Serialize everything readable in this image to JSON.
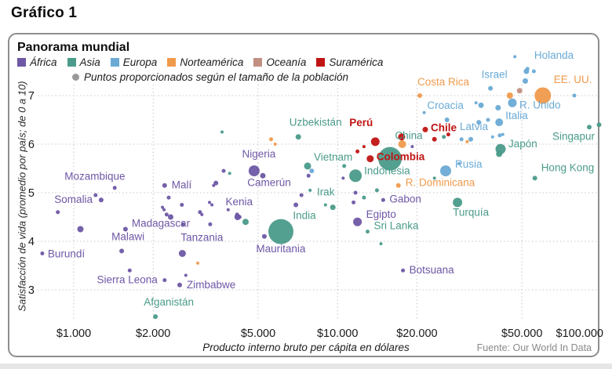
{
  "page_title": "Gráfico 1",
  "panel": {
    "title": "Panorama mundial",
    "source": "Fuente: Our World In Data"
  },
  "legend": {
    "size_note": "Puntos proporcionados según el tamaño de la población",
    "size_dot_color": "#999999",
    "continents": [
      {
        "key": "africa",
        "name": "África",
        "color": "#6e57a5"
      },
      {
        "key": "asia",
        "name": "Asia",
        "color": "#4a9b8a"
      },
      {
        "key": "europa",
        "name": "Europa",
        "color": "#6aaad5"
      },
      {
        "key": "norteamerica",
        "name": "Norteamérica",
        "color": "#f09a4c"
      },
      {
        "key": "oceania",
        "name": "Oceanía",
        "color": "#c28f83"
      },
      {
        "key": "suramerica",
        "name": "Suramérica",
        "color": "#c01414"
      }
    ]
  },
  "chart_data": {
    "type": "scatter",
    "title": "Panorama mundial",
    "xlabel": "Producto interno bruto per cápita en dólares",
    "ylabel": "Satisfacción de vida (promedio por país; de 0 a 10)",
    "x_scale": "log",
    "y_scale": "linear",
    "x_range": [
      700,
      110000
    ],
    "y_range": [
      2.3,
      7.9
    ],
    "grid": "dotted",
    "size_encoding": "población del país",
    "x_ticks": [
      {
        "value": 1000,
        "label": "$1.000",
        "gridline": true
      },
      {
        "value": 2000,
        "label": "$2.000",
        "gridline": true
      },
      {
        "value": 5000,
        "label": "$5.000",
        "gridline": true
      },
      {
        "value": 10000,
        "label": "$10.000",
        "gridline": true
      },
      {
        "value": 20000,
        "label": "$20.000",
        "gridline": true
      },
      {
        "value": 50000,
        "label": "$50.000",
        "gridline": true
      },
      {
        "value": 100000,
        "label": "$100.000",
        "gridline": false
      }
    ],
    "y_ticks": [
      3,
      4,
      5,
      6,
      7
    ],
    "points": [
      {
        "name": "Somalia",
        "continent": "africa",
        "gdp": 870,
        "ls": 4.6,
        "r": 2.5,
        "label_offset": [
          20,
          -12
        ],
        "anchor": "middle"
      },
      {
        "name": "Mozambique",
        "continent": "africa",
        "gdp": 1270,
        "ls": 4.85,
        "r": 3,
        "label_offset": [
          -8,
          -26
        ],
        "anchor": "middle"
      },
      {
        "name": "Burundí",
        "continent": "africa",
        "gdp": 760,
        "ls": 3.75,
        "r": 2.5,
        "label_offset": [
          7,
          5
        ],
        "anchor": "start"
      },
      {
        "name": "Sierra Leona",
        "continent": "africa",
        "gdp": 2210,
        "ls": 3.2,
        "r": 2.5,
        "label_offset": [
          -9,
          4
        ],
        "anchor": "end"
      },
      {
        "name": "Zimbabwe",
        "continent": "africa",
        "gdp": 2520,
        "ls": 3.1,
        "r": 3,
        "label_offset": [
          9,
          4
        ],
        "anchor": "start"
      },
      {
        "name": "Malawi",
        "continent": "africa",
        "gdp": 1520,
        "ls": 3.8,
        "r": 3,
        "label_offset": [
          8,
          -14
        ],
        "anchor": "middle"
      },
      {
        "name": "Madagascar",
        "continent": "africa",
        "gdp": 1570,
        "ls": 4.25,
        "r": 3,
        "label_offset": [
          8,
          -3
        ],
        "anchor": "start"
      },
      {
        "name": "Tanzania",
        "continent": "africa",
        "gdp": 2580,
        "ls": 3.75,
        "r": 4.5,
        "label_offset": [
          25,
          -16
        ],
        "anchor": "middle"
      },
      {
        "name": "Mauritania",
        "continent": "africa",
        "gdp": 5280,
        "ls": 4.1,
        "r": 3,
        "label_offset": [
          21,
          20
        ],
        "anchor": "middle"
      },
      {
        "name": "Malí",
        "continent": "africa",
        "gdp": 2210,
        "ls": 5.15,
        "r": 3,
        "label_offset": [
          9,
          4
        ],
        "anchor": "start"
      },
      {
        "name": "Kenia",
        "continent": "africa",
        "gdp": 4180,
        "ls": 4.5,
        "r": 4,
        "label_offset": [
          2,
          -15
        ],
        "anchor": "middle"
      },
      {
        "name": "Nigeria",
        "continent": "africa",
        "gdp": 4830,
        "ls": 5.45,
        "r": 7,
        "label_offset": [
          6,
          -17
        ],
        "anchor": "middle"
      },
      {
        "name": "Camerún",
        "continent": "africa",
        "gdp": 5210,
        "ls": 5.35,
        "r": 3.5,
        "label_offset": [
          8,
          13
        ],
        "anchor": "middle"
      },
      {
        "name": "Egipto",
        "continent": "africa",
        "gdp": 11900,
        "ls": 4.4,
        "r": 5.5,
        "label_offset": [
          11,
          -5
        ],
        "anchor": "start"
      },
      {
        "name": "Gabon",
        "continent": "africa",
        "gdp": 14900,
        "ls": 4.85,
        "r": 2.5,
        "label_offset": [
          8,
          3
        ],
        "anchor": "start"
      },
      {
        "name": "Botsuana",
        "continent": "africa",
        "gdp": 17700,
        "ls": 3.4,
        "r": 2.5,
        "label_offset": [
          8,
          4
        ],
        "anchor": "start"
      },
      {
        "name": "Afganistán",
        "continent": "asia",
        "gdp": 2040,
        "ls": 2.45,
        "r": 3,
        "label_offset": [
          17,
          -14
        ],
        "anchor": "middle"
      },
      {
        "name": "Uzbekistán",
        "continent": "asia",
        "gdp": 7100,
        "ls": 6.15,
        "r": 3.5,
        "label_offset": [
          22,
          -14
        ],
        "anchor": "middle"
      },
      {
        "name": "India",
        "continent": "asia",
        "gdp": 6100,
        "ls": 4.2,
        "r": 16,
        "label_offset": [
          30,
          -16
        ],
        "anchor": "middle"
      },
      {
        "name": "Vietnam",
        "continent": "asia",
        "gdp": 7700,
        "ls": 5.55,
        "r": 4.5,
        "label_offset": [
          8,
          -7
        ],
        "anchor": "start"
      },
      {
        "name": "Irak",
        "continent": "asia",
        "gdp": 9600,
        "ls": 4.7,
        "r": 3.5,
        "label_offset": [
          -9,
          -15
        ],
        "anchor": "middle"
      },
      {
        "name": "Indonesia",
        "continent": "asia",
        "gdp": 11700,
        "ls": 5.35,
        "r": 8,
        "label_offset": [
          11,
          -2
        ],
        "anchor": "start"
      },
      {
        "name": "China",
        "continent": "asia",
        "gdp": 15800,
        "ls": 5.7,
        "r": 15,
        "label_offset": [
          24,
          -25
        ],
        "anchor": "middle"
      },
      {
        "name": "Sri Lanka",
        "continent": "asia",
        "gdp": 13000,
        "ls": 4.2,
        "r": 2.5,
        "label_offset": [
          8,
          -3
        ],
        "anchor": "start"
      },
      {
        "name": "Turquía",
        "continent": "asia",
        "gdp": 28500,
        "ls": 4.8,
        "r": 6,
        "label_offset": [
          17,
          17
        ],
        "anchor": "middle"
      },
      {
        "name": "Japón",
        "continent": "asia",
        "gdp": 41500,
        "ls": 5.9,
        "r": 6.5,
        "label_offset": [
          10,
          -2
        ],
        "anchor": "start"
      },
      {
        "name": "Singapur",
        "continent": "asia",
        "gdp": 90000,
        "ls": 6.35,
        "r": 3,
        "label_offset": [
          7,
          16
        ],
        "anchor": "end"
      },
      {
        "name": "Hong Kong",
        "continent": "asia",
        "gdp": 56000,
        "ls": 5.3,
        "r": 3,
        "label_offset": [
          8,
          -9
        ],
        "anchor": "start"
      },
      {
        "name": "Croacia",
        "continent": "europa",
        "gdp": 26000,
        "ls": 6.5,
        "r": 3,
        "label_offset": [
          -2,
          -14
        ],
        "anchor": "middle"
      },
      {
        "name": "Latvia",
        "continent": "europa",
        "gdp": 32000,
        "ls": 6.1,
        "r": 3,
        "label_offset": [
          4,
          -12
        ],
        "anchor": "middle"
      },
      {
        "name": "Rusia",
        "continent": "europa",
        "gdp": 25700,
        "ls": 5.45,
        "r": 7,
        "label_offset": [
          12,
          -4
        ],
        "anchor": "start"
      },
      {
        "name": "Italia",
        "continent": "europa",
        "gdp": 41000,
        "ls": 6.45,
        "r": 5,
        "label_offset": [
          8,
          -4
        ],
        "anchor": "start"
      },
      {
        "name": "R. Unido",
        "continent": "europa",
        "gdp": 46000,
        "ls": 6.85,
        "r": 5.5,
        "label_offset": [
          9,
          7
        ],
        "anchor": "start"
      },
      {
        "name": "Israel",
        "continent": "europa",
        "gdp": 38000,
        "ls": 7.15,
        "r": 3,
        "label_offset": [
          5,
          -13
        ],
        "anchor": "middle"
      },
      {
        "name": "Holanda",
        "continent": "europa",
        "gdp": 52000,
        "ls": 7.5,
        "r": 3.5,
        "label_offset": [
          10,
          -16
        ],
        "anchor": "start"
      },
      {
        "name": "Costa Rica",
        "continent": "norteamerica",
        "gdp": 20500,
        "ls": 7.0,
        "r": 3,
        "label_offset": [
          30,
          -13
        ],
        "anchor": "middle"
      },
      {
        "name": "R. Dominicana",
        "continent": "norteamerica",
        "gdp": 17000,
        "ls": 5.15,
        "r": 3,
        "label_offset": [
          9,
          1
        ],
        "anchor": "start"
      },
      {
        "name": "EE. UU.",
        "continent": "norteamerica",
        "gdp": 60000,
        "ls": 7.0,
        "r": 10.5,
        "label_offset": [
          14,
          -16
        ],
        "anchor": "start"
      },
      {
        "name": "Perú",
        "continent": "suramerica",
        "gdp": 13900,
        "ls": 6.05,
        "r": 5.5,
        "bold": true,
        "label_offset": [
          -18,
          -20
        ],
        "anchor": "middle"
      },
      {
        "name": "Colombia",
        "continent": "suramerica",
        "gdp": 13300,
        "ls": 5.7,
        "r": 4.5,
        "bold": true,
        "label_offset": [
          8,
          2
        ],
        "anchor": "start"
      },
      {
        "name": "Chile",
        "continent": "suramerica",
        "gdp": 21500,
        "ls": 6.3,
        "r": 3.5,
        "bold": true,
        "label_offset": [
          7,
          2
        ],
        "anchor": "start"
      },
      {
        "continent": "africa",
        "gdp": 1060,
        "ls": 4.25,
        "r": 4
      },
      {
        "continent": "africa",
        "gdp": 1210,
        "ls": 4.95,
        "r": 2.5
      },
      {
        "continent": "africa",
        "gdp": 1430,
        "ls": 5.1,
        "r": 2.5
      },
      {
        "continent": "africa",
        "gdp": 2290,
        "ls": 4.9,
        "r": 2.5
      },
      {
        "continent": "africa",
        "gdp": 2570,
        "ls": 4.75,
        "r": 2.5
      },
      {
        "continent": "africa",
        "gdp": 2170,
        "ls": 4.7,
        "r": 2
      },
      {
        "continent": "africa",
        "gdp": 2200,
        "ls": 4.65,
        "r": 2
      },
      {
        "continent": "africa",
        "gdp": 2250,
        "ls": 4.55,
        "r": 2.5
      },
      {
        "continent": "africa",
        "gdp": 2330,
        "ls": 4.5,
        "r": 3.5
      },
      {
        "continent": "africa",
        "gdp": 3270,
        "ls": 4.8,
        "r": 2
      },
      {
        "continent": "africa",
        "gdp": 3010,
        "ls": 4.6,
        "r": 2.5
      },
      {
        "continent": "africa",
        "gdp": 3290,
        "ls": 4.35,
        "r": 2.5
      },
      {
        "continent": "africa",
        "gdp": 3700,
        "ls": 5.45,
        "r": 2.5
      },
      {
        "continent": "africa",
        "gdp": 3460,
        "ls": 5.2,
        "r": 3
      },
      {
        "continent": "africa",
        "gdp": 3390,
        "ls": 5.15,
        "r": 2
      },
      {
        "continent": "africa",
        "gdp": 2590,
        "ls": 4.35,
        "r": 2.5
      },
      {
        "continent": "africa",
        "gdp": 3060,
        "ls": 4.55,
        "r": 2
      },
      {
        "continent": "africa",
        "gdp": 3340,
        "ls": 4.75,
        "r": 2
      },
      {
        "continent": "africa",
        "gdp": 4160,
        "ls": 4.55,
        "r": 2.5
      },
      {
        "continent": "africa",
        "gdp": 1630,
        "ls": 3.4,
        "r": 2.5
      },
      {
        "continent": "africa",
        "gdp": 2660,
        "ls": 3.3,
        "r": 2
      },
      {
        "continent": "africa",
        "gdp": 6950,
        "ls": 4.75,
        "r": 3
      },
      {
        "continent": "africa",
        "gdp": 10500,
        "ls": 5.3,
        "r": 2
      },
      {
        "continent": "africa",
        "gdp": 19200,
        "ls": 5.95,
        "r": 2
      },
      {
        "continent": "africa",
        "gdp": 4250,
        "ls": 4.5,
        "r": 2.5
      },
      {
        "continent": "africa",
        "gdp": 3850,
        "ls": 4.65,
        "r": 2
      },
      {
        "continent": "africa",
        "gdp": 11500,
        "ls": 4.8,
        "r": 2.5
      },
      {
        "continent": "africa",
        "gdp": 11700,
        "ls": 5.0,
        "r": 2.5
      },
      {
        "continent": "africa",
        "gdp": 7760,
        "ls": 5.35,
        "r": 2.5
      },
      {
        "continent": "africa",
        "gdp": 7300,
        "ls": 4.95,
        "r": 2.5
      },
      {
        "continent": "asia",
        "gdp": 3900,
        "ls": 5.4,
        "r": 2
      },
      {
        "continent": "asia",
        "gdp": 4480,
        "ls": 4.4,
        "r": 4
      },
      {
        "continent": "asia",
        "gdp": 7870,
        "ls": 5.05,
        "r": 2
      },
      {
        "continent": "asia",
        "gdp": 12600,
        "ls": 4.9,
        "r": 2.5
      },
      {
        "continent": "asia",
        "gdp": 14600,
        "ls": 3.95,
        "r": 2
      },
      {
        "continent": "asia",
        "gdp": 14100,
        "ls": 5.05,
        "r": 2.5
      },
      {
        "continent": "asia",
        "gdp": 10600,
        "ls": 5.55,
        "r": 2.5
      },
      {
        "continent": "asia",
        "gdp": 3650,
        "ls": 6.25,
        "r": 2
      },
      {
        "continent": "asia",
        "gdp": 25300,
        "ls": 6.15,
        "r": 2.5
      },
      {
        "continent": "asia",
        "gdp": 98000,
        "ls": 6.4,
        "r": 3
      },
      {
        "continent": "asia",
        "gdp": 41000,
        "ls": 5.8,
        "r": 4
      },
      {
        "continent": "asia",
        "gdp": 9000,
        "ls": 4.75,
        "r": 2
      },
      {
        "continent": "asia",
        "gdp": 23300,
        "ls": 5.3,
        "r": 2
      },
      {
        "continent": "europa",
        "gdp": 47000,
        "ls": 7.8,
        "r": 2
      },
      {
        "continent": "europa",
        "gdp": 51500,
        "ls": 7.3,
        "r": 3.5
      },
      {
        "continent": "europa",
        "gdp": 52500,
        "ls": 7.55,
        "r": 2.5
      },
      {
        "continent": "europa",
        "gdp": 55500,
        "ls": 7.5,
        "r": 2.5
      },
      {
        "continent": "europa",
        "gdp": 33500,
        "ls": 6.85,
        "r": 2
      },
      {
        "continent": "europa",
        "gdp": 35000,
        "ls": 6.8,
        "r": 3.5
      },
      {
        "continent": "europa",
        "gdp": 40600,
        "ls": 6.75,
        "r": 3.5
      },
      {
        "continent": "europa",
        "gdp": 34300,
        "ls": 6.45,
        "r": 3
      },
      {
        "continent": "europa",
        "gdp": 37200,
        "ls": 6.5,
        "r": 2.5
      },
      {
        "continent": "europa",
        "gdp": 29500,
        "ls": 6.1,
        "r": 2.5
      },
      {
        "continent": "europa",
        "gdp": 38700,
        "ls": 6.15,
        "r": 2
      },
      {
        "continent": "europa",
        "gdp": 41200,
        "ls": 6.18,
        "r": 2.5
      },
      {
        "continent": "europa",
        "gdp": 42300,
        "ls": 6.2,
        "r": 2
      },
      {
        "continent": "europa",
        "gdp": 79000,
        "ls": 7.0,
        "r": 2.5
      },
      {
        "continent": "europa",
        "gdp": 21300,
        "ls": 6.65,
        "r": 2
      },
      {
        "continent": "europa",
        "gdp": 28900,
        "ls": 5.6,
        "r": 2
      },
      {
        "continent": "europa",
        "gdp": 7980,
        "ls": 5.45,
        "r": 3
      },
      {
        "continent": "norteamerica",
        "gdp": 17600,
        "ls": 6.0,
        "r": 5
      },
      {
        "continent": "norteamerica",
        "gdp": 45000,
        "ls": 7.0,
        "r": 4
      },
      {
        "continent": "norteamerica",
        "gdp": 5600,
        "ls": 6.1,
        "r": 2.5
      },
      {
        "continent": "norteamerica",
        "gdp": 5800,
        "ls": 6.0,
        "r": 2
      },
      {
        "continent": "norteamerica",
        "gdp": 2950,
        "ls": 3.55,
        "r": 2
      },
      {
        "continent": "norteamerica",
        "gdp": 31000,
        "ls": 6.05,
        "r": 2
      },
      {
        "continent": "suramerica",
        "gdp": 11900,
        "ls": 5.85,
        "r": 2.5
      },
      {
        "continent": "suramerica",
        "gdp": 12600,
        "ls": 5.95,
        "r": 2
      },
      {
        "continent": "suramerica",
        "gdp": 23300,
        "ls": 6.1,
        "r": 3
      },
      {
        "continent": "suramerica",
        "gdp": 26300,
        "ls": 6.2,
        "r": 2.5
      },
      {
        "continent": "suramerica",
        "gdp": 17500,
        "ls": 6.15,
        "r": 4.5
      },
      {
        "continent": "oceania",
        "gdp": 49000,
        "ls": 7.1,
        "r": 3.5
      }
    ]
  }
}
